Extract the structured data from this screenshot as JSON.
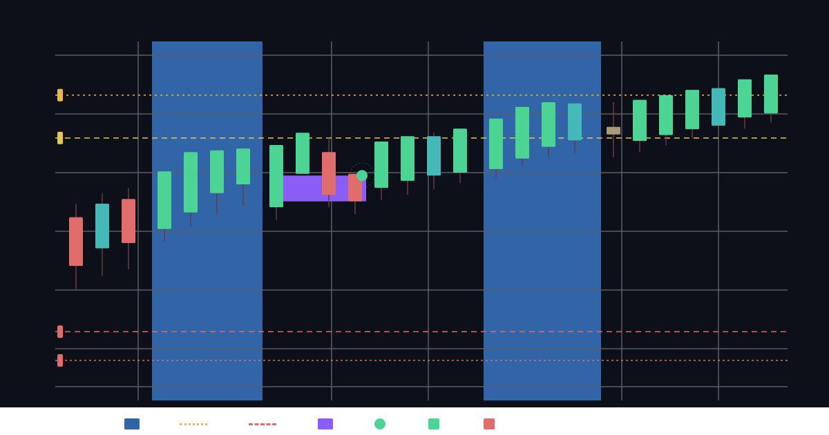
{
  "chart_data": {
    "type": "candlestick",
    "xlim": [
      0,
      106
    ],
    "ylim": [
      0,
      60
    ],
    "xticks": [
      12,
      40,
      54,
      82,
      96
    ],
    "yticks": [
      10,
      20,
      30,
      40,
      50,
      60
    ],
    "grid": true,
    "x": [
      3,
      6.8,
      10.6,
      15.8,
      19.6,
      23.4,
      27.2,
      32,
      35.8,
      39.6,
      43.4,
      47.2,
      51,
      54.8,
      58.6,
      63.8,
      67.6,
      71.4,
      75.2,
      80.8,
      84.6,
      88.4,
      92.2,
      96,
      99.8,
      103.6
    ],
    "open": [
      32.4,
      27.1,
      35.5,
      30.4,
      33.2,
      36.5,
      38.0,
      34.1,
      39.8,
      43.5,
      39.8,
      37.4,
      38.6,
      39.5,
      40.0,
      40.6,
      42.4,
      44.4,
      45.5,
      46.5,
      45.4,
      46.4,
      47.4,
      48.0,
      49.4,
      50.1
    ],
    "high": [
      34.7,
      36.5,
      37.4,
      40.2,
      43.5,
      43.8,
      44.1,
      44.7,
      46.8,
      45.9,
      39.8,
      45.3,
      46.2,
      46.8,
      47.5,
      49.2,
      51.2,
      52.0,
      51.8,
      52.0,
      52.4,
      53.2,
      54.1,
      54.4,
      55.9,
      56.7
    ],
    "low": [
      20.2,
      22.4,
      23.5,
      28.2,
      30.8,
      32.9,
      34.4,
      32.0,
      39.8,
      34.1,
      32.9,
      35.3,
      36.2,
      37.1,
      38.2,
      39.1,
      41.2,
      42.6,
      43.3,
      42.6,
      43.5,
      44.7,
      45.9,
      48.0,
      47.5,
      48.5
    ],
    "close": [
      24.1,
      34.7,
      28.0,
      40.2,
      43.5,
      43.8,
      44.1,
      44.7,
      46.8,
      36.2,
      35.1,
      45.3,
      46.2,
      46.2,
      47.5,
      49.2,
      51.2,
      52.0,
      51.8,
      47.8,
      52.4,
      53.2,
      54.1,
      54.4,
      55.9,
      56.7
    ],
    "colors": [
      "#e06c6c",
      "#45b8b8",
      "#e06c6c",
      "#4cd494",
      "#4cd494",
      "#4cd494",
      "#4cd494",
      "#4cd494",
      "#4cd494",
      "#e06c6c",
      "#e06c6c",
      "#4cd494",
      "#4cd494",
      "#45b8b8",
      "#4cd494",
      "#4cd494",
      "#4cd494",
      "#4cd494",
      "#45b8b8",
      "#a89a7a",
      "#4cd494",
      "#4cd494",
      "#4cd494",
      "#45b8b8",
      "#4cd494",
      "#4cd494"
    ],
    "bands": {
      "ranges": [
        [
          14,
          30
        ],
        [
          62,
          79
        ]
      ],
      "color": "#3165a8"
    },
    "hlines": [
      {
        "value": 53.2,
        "color": "#e8b84a",
        "dash": "3 5"
      },
      {
        "value": 45.9,
        "color": "#e8c84a",
        "dash": "8 6"
      },
      {
        "value": 12.9,
        "color": "#e06c6c",
        "dash": "8 6"
      },
      {
        "value": 8.0,
        "color": "#e06c6c",
        "dash": "3 4"
      }
    ],
    "zone": {
      "x": [
        33,
        45
      ],
      "y": [
        35.1,
        39.5
      ],
      "color": "#8b5cf6"
    },
    "marker": {
      "x": 44.4,
      "y": 39.5,
      "color": "#4cd494"
    }
  }
}
